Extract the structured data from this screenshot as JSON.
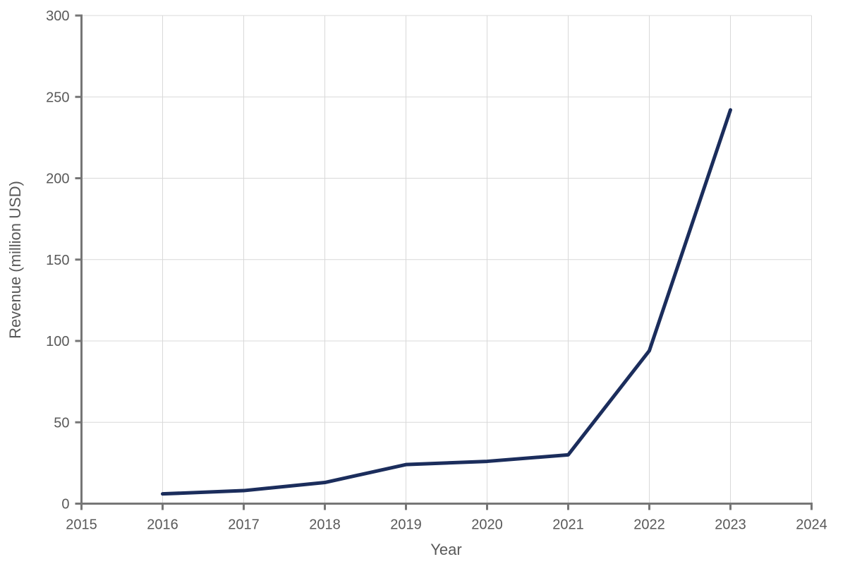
{
  "chart_data": {
    "type": "line",
    "title": "",
    "xlabel": "Year",
    "ylabel": "Revenue (million USD)",
    "x": [
      2016,
      2017,
      2018,
      2019,
      2020,
      2021,
      2022,
      2023
    ],
    "series": [
      {
        "name": "Revenue",
        "values": [
          6,
          8,
          13,
          24,
          26,
          30,
          94,
          242
        ]
      }
    ],
    "xlim": [
      2015,
      2024
    ],
    "ylim": [
      0,
      300
    ],
    "x_ticks": [
      2015,
      2016,
      2017,
      2018,
      2019,
      2020,
      2021,
      2022,
      2023,
      2024
    ],
    "y_ticks": [
      0,
      50,
      100,
      150,
      200,
      250,
      300
    ],
    "grid": true,
    "legend": false
  },
  "style": {
    "line_color": "#1b2d5c",
    "grid_color": "#d9d9d9",
    "axis_color": "#767676",
    "tick_label_color": "#595959",
    "axis_title_color": "#595959",
    "background": "#ffffff"
  }
}
